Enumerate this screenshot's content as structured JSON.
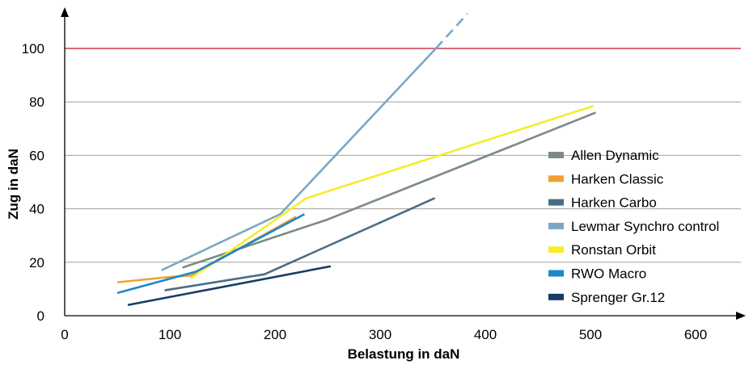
{
  "chart_data": {
    "type": "line",
    "title": "",
    "xlabel": "Belastung in daN",
    "ylabel": "Zug in daN",
    "xlim": [
      0,
      650
    ],
    "ylim": [
      0,
      115
    ],
    "x_ticks": [
      "0",
      "100",
      "200",
      "300",
      "400",
      "500",
      "600"
    ],
    "y_ticks": [
      "0",
      "20",
      "40",
      "60",
      "80",
      "100"
    ],
    "grid": "horizontal",
    "reference_line": {
      "y": 100,
      "color": "#c8102e"
    },
    "legend_position": "right",
    "series": [
      {
        "name": "Allen Dynamic",
        "color": "#7b8a85",
        "points": [
          [
            112,
            18
          ],
          [
            250,
            36
          ],
          [
            505,
            76
          ]
        ]
      },
      {
        "name": "Harken Classic",
        "color": "#f0a030",
        "points": [
          [
            50,
            12.5
          ],
          [
            100,
            14.5
          ],
          [
            120,
            15
          ],
          [
            220,
            37
          ]
        ]
      },
      {
        "name": "Harken Carbo",
        "color": "#4a6d85",
        "points": [
          [
            95,
            9.5
          ],
          [
            190,
            15.5
          ],
          [
            352,
            44
          ]
        ]
      },
      {
        "name": "Lewmar Synchro control",
        "color": "#7aa8c2",
        "points": [
          [
            92,
            17
          ],
          [
            205,
            38
          ],
          [
            353,
            100
          ],
          [
            383,
            113
          ]
        ],
        "dashed_from": 2
      },
      {
        "name": "Ronstan Orbit",
        "color": "#f7ec2e",
        "points": [
          [
            120,
            14
          ],
          [
            230,
            44
          ],
          [
            503,
            78.5
          ]
        ]
      },
      {
        "name": "RWO Macro",
        "color": "#1a87c8",
        "points": [
          [
            50,
            8.5
          ],
          [
            125,
            16.5
          ],
          [
            228,
            38
          ]
        ]
      },
      {
        "name": "Sprenger Gr.12",
        "color": "#173c66",
        "points": [
          [
            60,
            4
          ],
          [
            253,
            18.5
          ]
        ]
      }
    ]
  }
}
